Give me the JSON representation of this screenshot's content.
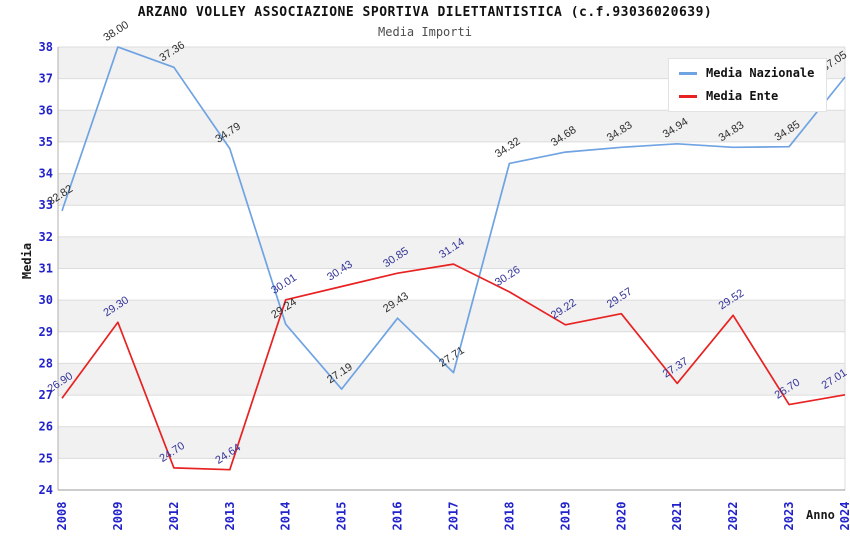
{
  "header": {
    "title": "ARZANO VOLLEY ASSOCIAZIONE SPORTIVA DILETTANTISTICA (c.f.93036020639)",
    "subtitle": "Media Importi"
  },
  "legend": {
    "items": [
      {
        "label": "Media Nazionale",
        "color": "#6fa3e2"
      },
      {
        "label": "Media Ente",
        "color": "#e82222"
      }
    ]
  },
  "chart_data": {
    "type": "line",
    "title": "ARZANO VOLLEY ASSOCIAZIONE SPORTIVA DILETTANTISTICA (c.f.93036020639)",
    "subtitle": "Media Importi",
    "xlabel": "Anno",
    "ylabel": "Media",
    "categories": [
      "2008",
      "2009",
      "2012",
      "2013",
      "2014",
      "2015",
      "2016",
      "2017",
      "2018",
      "2019",
      "2020",
      "2021",
      "2022",
      "2023",
      "2024"
    ],
    "series": [
      {
        "name": "Media Nazionale",
        "color": "#6fa3e2",
        "label_color": "#2e2e2e",
        "values": [
          32.82,
          38.0,
          37.36,
          34.79,
          29.24,
          27.19,
          29.43,
          27.71,
          34.32,
          34.68,
          34.83,
          34.94,
          34.83,
          34.85,
          37.05
        ],
        "labels": [
          "32.82",
          "38.00",
          "37.36",
          "34.79",
          "29.24",
          "27.19",
          "29.43",
          "27.71",
          "34.32",
          "34.68",
          "34.83",
          "34.94",
          "34.83",
          "34.85",
          "37.05"
        ]
      },
      {
        "name": "Media Ente",
        "color": "#e82222",
        "label_color": "#333399",
        "values": [
          26.9,
          29.3,
          24.7,
          24.64,
          30.01,
          30.43,
          30.85,
          31.14,
          30.26,
          29.22,
          29.57,
          27.37,
          29.52,
          26.7,
          27.01
        ],
        "labels": [
          "26.90",
          "29.30",
          "24.70",
          "24.64",
          "30.01",
          "30.43",
          "30.85",
          "31.14",
          "30.26",
          "29.22",
          "29.57",
          "27.37",
          "29.52",
          "26.70",
          "27.01"
        ]
      }
    ],
    "ylim": [
      24,
      38
    ],
    "y_ticks": [
      24,
      25,
      26,
      27,
      28,
      29,
      30,
      31,
      32,
      33,
      34,
      35,
      36,
      37,
      38
    ],
    "grid": true,
    "band_colors": [
      "#ffffff",
      "#f1f1f1"
    ],
    "gridline_color": "#dcdcdc",
    "tick_color": "#2222cc",
    "legend_position": "top-right"
  }
}
